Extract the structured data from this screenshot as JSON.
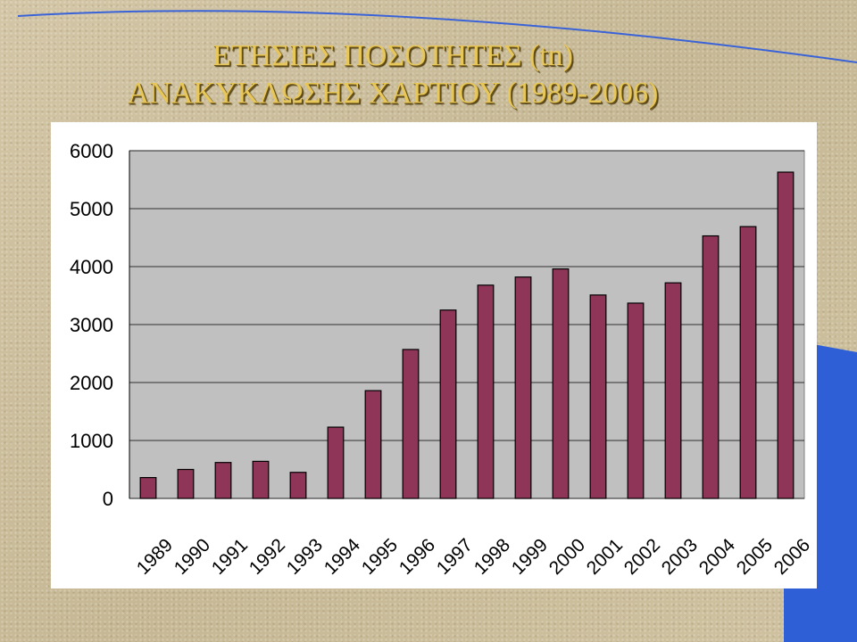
{
  "title_line1": "ΕΤΗΣΙΕΣ ΠΟΣΟΤΗΤΕΣ (tn)",
  "title_line2": "ΑΝΑΚΥΚΛΩΣΗΣ ΧΑΡΤΙΟΥ (1989-2006)",
  "colors": {
    "bar": "#8e3558",
    "plot_bg": "#c0c0c0",
    "accent_blue": "#2f5fd6"
  },
  "chart_data": {
    "type": "bar",
    "categories": [
      "1989",
      "1990",
      "1991",
      "1992",
      "1993",
      "1994",
      "1995",
      "1996",
      "1997",
      "1998",
      "1999",
      "2000",
      "2001",
      "2002",
      "2003",
      "2004",
      "2005",
      "2006"
    ],
    "values": [
      360,
      500,
      620,
      640,
      450,
      1230,
      1860,
      2570,
      3250,
      3680,
      3820,
      3960,
      3510,
      3370,
      3720,
      4530,
      4690,
      5630
    ],
    "yticks": [
      0,
      1000,
      2000,
      3000,
      4000,
      5000,
      6000
    ],
    "ylim": [
      0,
      6000
    ],
    "grid": true,
    "legend": "none"
  }
}
